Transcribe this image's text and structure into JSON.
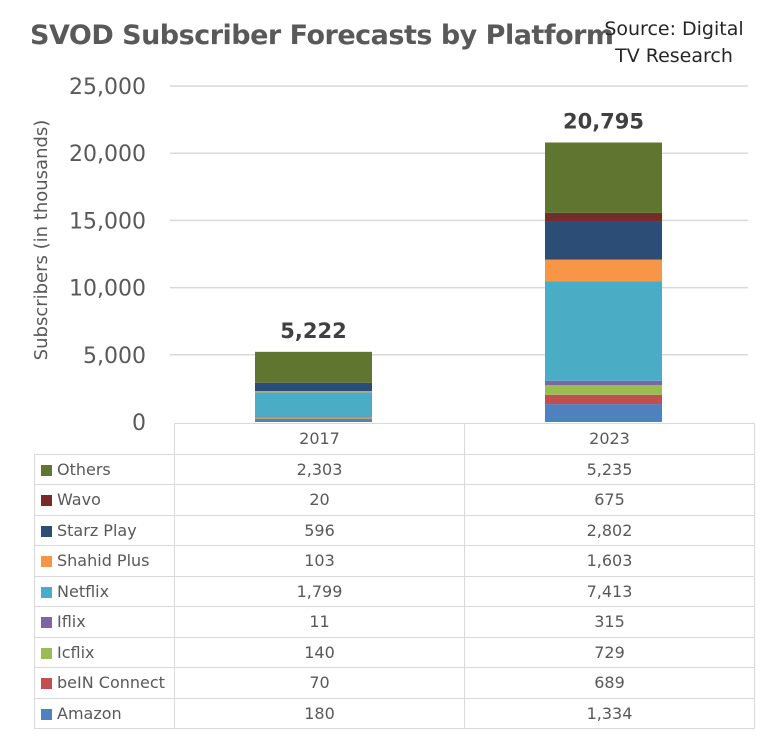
{
  "title": "SVOD Subscriber Forecasts by Platform",
  "source": [
    "Source: Digital",
    "TV Research"
  ],
  "chart_data": {
    "type": "bar",
    "stacked": true,
    "title": "SVOD Subscriber Forecasts by Platform",
    "subtitle": "Source: Digital TV Research",
    "xlabel": "",
    "ylabel": "Subscribers (in thousands)",
    "ylim": [
      0,
      25000
    ],
    "yticks": [
      0,
      5000,
      10000,
      15000,
      20000,
      25000
    ],
    "ytick_labels": [
      "0",
      "5,000",
      "10,000",
      "15,000",
      "20,000",
      "25,000"
    ],
    "grid": true,
    "legend": "data-table-below",
    "categories": [
      "2017",
      "2023"
    ],
    "totals": [
      5222,
      20795
    ],
    "total_labels": [
      "5,222",
      "20,795"
    ],
    "series": [
      {
        "name": "Amazon",
        "color": "#4f81bd",
        "values": [
          180,
          1334
        ],
        "labels": [
          "180",
          "1,334"
        ]
      },
      {
        "name": "beIN Connect",
        "color": "#c0504d",
        "values": [
          70,
          689
        ],
        "labels": [
          "70",
          "689"
        ]
      },
      {
        "name": "Icflix",
        "color": "#9bbb59",
        "values": [
          140,
          729
        ],
        "labels": [
          "140",
          "729"
        ]
      },
      {
        "name": "Iflix",
        "color": "#8064a2",
        "values": [
          11,
          315
        ],
        "labels": [
          "11",
          "315"
        ]
      },
      {
        "name": "Netflix",
        "color": "#4bacc6",
        "values": [
          1799,
          7413
        ],
        "labels": [
          "1,799",
          "7,413"
        ]
      },
      {
        "name": "Shahid Plus",
        "color": "#f79646",
        "values": [
          103,
          1603
        ],
        "labels": [
          "103",
          "1,603"
        ]
      },
      {
        "name": "Starz Play",
        "color": "#2c4d75",
        "values": [
          596,
          2802
        ],
        "labels": [
          "596",
          "2,802"
        ]
      },
      {
        "name": "Wavo",
        "color": "#772c2a",
        "values": [
          20,
          675
        ],
        "labels": [
          "20",
          "675"
        ]
      },
      {
        "name": "Others",
        "color": "#5f7530",
        "values": [
          2303,
          5235
        ],
        "labels": [
          "2,303",
          "5,235"
        ]
      }
    ]
  }
}
